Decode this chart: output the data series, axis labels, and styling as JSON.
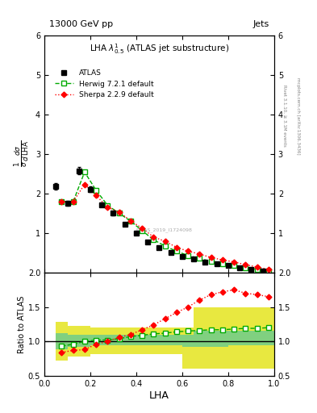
{
  "title_top": "13000 GeV pp",
  "title_right": "Jets",
  "plot_title": "LHA $\\lambda^1_{0.5}$ (ATLAS jet substructure)",
  "ylabel_main": "$\\frac{1}{\\sigma}\\frac{d\\sigma}{d\\,\\mathrm{LHA}}$",
  "ylabel_ratio": "Ratio to ATLAS",
  "xlabel": "LHA",
  "right_label_1": "Rivet 3.1.10, ≥ 3.1M events",
  "right_label_2": "mcplots.cern.ch [arXiv:1306.3436]",
  "watermark": "ATLAS_2019_I1724098",
  "atlas_x": [
    0.05,
    0.1,
    0.15,
    0.2,
    0.25,
    0.3,
    0.35,
    0.4,
    0.45,
    0.5,
    0.55,
    0.6,
    0.65,
    0.7,
    0.75,
    0.8,
    0.85,
    0.9,
    0.95
  ],
  "atlas_y": [
    2.18,
    1.75,
    2.57,
    2.1,
    1.72,
    1.5,
    1.22,
    1.0,
    0.78,
    0.63,
    0.5,
    0.4,
    0.34,
    0.27,
    0.22,
    0.18,
    0.12,
    0.07,
    0.03
  ],
  "atlas_yerr": [
    0.08,
    0.07,
    0.09,
    0.07,
    0.06,
    0.055,
    0.045,
    0.04,
    0.03,
    0.025,
    0.022,
    0.018,
    0.015,
    0.012,
    0.01,
    0.008,
    0.006,
    0.005,
    0.003
  ],
  "herwig_x": [
    0.075,
    0.125,
    0.175,
    0.225,
    0.275,
    0.325,
    0.375,
    0.425,
    0.475,
    0.525,
    0.575,
    0.625,
    0.675,
    0.725,
    0.775,
    0.825,
    0.875,
    0.925,
    0.975
  ],
  "herwig_y": [
    1.79,
    1.79,
    2.54,
    2.08,
    1.7,
    1.5,
    1.3,
    1.06,
    0.83,
    0.67,
    0.54,
    0.43,
    0.36,
    0.28,
    0.23,
    0.19,
    0.13,
    0.08,
    0.04
  ],
  "sherpa_x": [
    0.075,
    0.125,
    0.175,
    0.225,
    0.275,
    0.325,
    0.375,
    0.425,
    0.475,
    0.525,
    0.575,
    0.625,
    0.675,
    0.725,
    0.775,
    0.825,
    0.875,
    0.925,
    0.975
  ],
  "sherpa_y": [
    1.79,
    1.79,
    2.23,
    1.95,
    1.65,
    1.53,
    1.31,
    1.12,
    0.9,
    0.79,
    0.64,
    0.54,
    0.47,
    0.38,
    0.32,
    0.27,
    0.2,
    0.14,
    0.08
  ],
  "ratio_x": [
    0.075,
    0.125,
    0.175,
    0.225,
    0.275,
    0.325,
    0.375,
    0.425,
    0.475,
    0.525,
    0.575,
    0.625,
    0.675,
    0.725,
    0.775,
    0.825,
    0.875,
    0.925,
    0.975
  ],
  "ratio_herwig_y": [
    0.93,
    0.96,
    1.0,
    1.02,
    1.02,
    1.04,
    1.07,
    1.09,
    1.11,
    1.12,
    1.14,
    1.15,
    1.16,
    1.17,
    1.17,
    1.18,
    1.19,
    1.19,
    1.2
  ],
  "ratio_sherpa_y": [
    0.84,
    0.87,
    0.88,
    0.96,
    1.0,
    1.06,
    1.1,
    1.17,
    1.24,
    1.33,
    1.42,
    1.5,
    1.6,
    1.68,
    1.72,
    1.75,
    1.7,
    1.68,
    1.65
  ],
  "band_x_edges": [
    0.05,
    0.1,
    0.2,
    0.4,
    0.6,
    0.65,
    0.8,
    1.0
  ],
  "band_yellow_lo": [
    0.72,
    0.78,
    0.82,
    0.82,
    0.6,
    0.6,
    0.6,
    0.6
  ],
  "band_yellow_hi": [
    1.28,
    1.22,
    1.2,
    1.2,
    1.2,
    1.5,
    1.5,
    1.5
  ],
  "band_green_lo": [
    0.88,
    0.92,
    0.95,
    0.95,
    0.92,
    0.92,
    0.95,
    0.95
  ],
  "band_green_hi": [
    1.12,
    1.1,
    1.1,
    1.1,
    1.1,
    1.15,
    1.15,
    1.15
  ],
  "main_ylim": [
    0,
    6
  ],
  "main_yticks": [
    1,
    2,
    3,
    4,
    5,
    6
  ],
  "ratio_ylim": [
    0.5,
    2.0
  ],
  "ratio_yticks": [
    0.5,
    1.0,
    1.5,
    2.0
  ],
  "xlim": [
    0,
    1
  ],
  "color_atlas": "#000000",
  "color_herwig": "#00aa00",
  "color_sherpa": "#ff0000",
  "color_green_band": "#80d080",
  "color_yellow_band": "#e8e840",
  "background": "#ffffff"
}
